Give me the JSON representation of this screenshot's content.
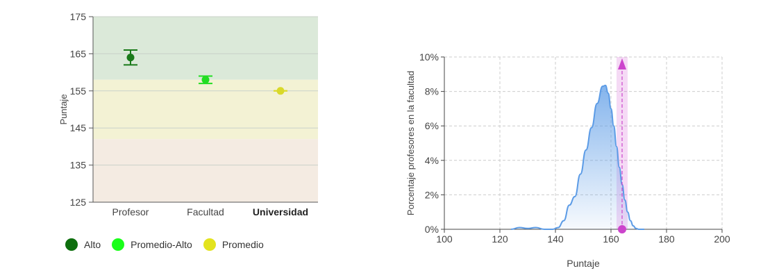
{
  "chart_data": [
    {
      "type": "errorbar",
      "ylabel": "Puntaje",
      "ylim": [
        125,
        175
      ],
      "yticks": [
        125,
        135,
        145,
        155,
        165,
        175
      ],
      "categories": [
        "Profesor",
        "Facultad",
        "Universidad"
      ],
      "category_bold": [
        false,
        false,
        true
      ],
      "points": [
        {
          "category": "Profesor",
          "value": 164,
          "lower": 162,
          "upper": 166,
          "level": "Alto",
          "color": "#1a7a1a"
        },
        {
          "category": "Facultad",
          "value": 158,
          "lower": 157,
          "upper": 159,
          "level": "Promedio-Alto",
          "color": "#22dd22"
        },
        {
          "category": "Universidad",
          "value": 155,
          "lower": 155,
          "upper": 155,
          "level": "Promedio",
          "color": "#d9d92a"
        }
      ],
      "bands": [
        {
          "from": 158,
          "to": 175,
          "color": "#dbe9d9"
        },
        {
          "from": 142,
          "to": 158,
          "color": "#f3f2d4"
        },
        {
          "from": 125,
          "to": 142,
          "color": "#f4ebe2"
        }
      ],
      "legend": [
        {
          "label": "Alto",
          "color": "#0d6e0d"
        },
        {
          "label": "Promedio-Alto",
          "color": "#19ff19"
        },
        {
          "label": "Promedio",
          "color": "#e3e31e"
        }
      ]
    },
    {
      "type": "area",
      "xlabel": "Puntaje",
      "ylabel": "Porcentaje profesores en la facultad",
      "xlim": [
        100,
        200
      ],
      "ylim": [
        0,
        10
      ],
      "xticks": [
        100,
        120,
        140,
        160,
        180,
        200
      ],
      "yticks": [
        "0%",
        "2%",
        "4%",
        "6%",
        "8%",
        "10%"
      ],
      "grid": true,
      "series": [
        {
          "x": [
            124,
            127,
            130,
            133,
            136,
            139,
            141,
            143,
            145,
            147,
            149,
            151,
            153,
            155,
            157,
            158,
            159,
            160,
            161,
            162,
            163,
            164,
            165,
            166,
            167,
            168,
            169,
            170,
            172
          ],
          "y": [
            0,
            0.1,
            0.05,
            0.1,
            0,
            0,
            0.1,
            0.5,
            1.4,
            1.9,
            3.2,
            4.6,
            5.9,
            7.3,
            8.3,
            8.35,
            7.9,
            7.0,
            6.0,
            4.8,
            3.6,
            2.6,
            1.7,
            1.0,
            0.5,
            0.2,
            0.05,
            0,
            0
          ],
          "color": "#5b9be6"
        }
      ],
      "marker": {
        "x": 164,
        "band_from": 162,
        "band_to": 166,
        "color": "#cc44cc"
      }
    }
  ]
}
